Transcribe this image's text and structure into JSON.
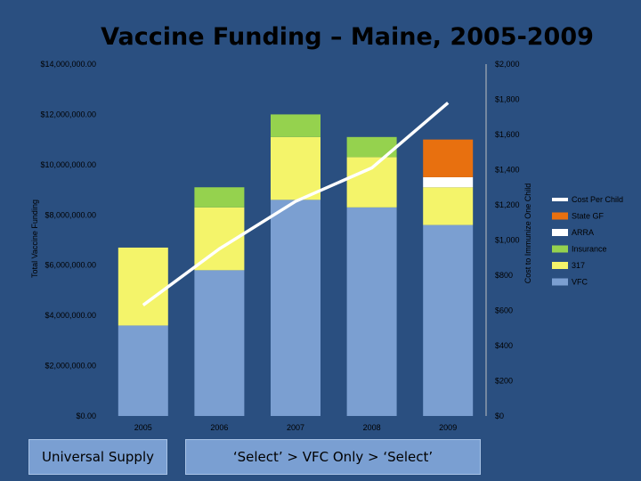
{
  "title": "Vaccine Funding – Maine, 2005-2009",
  "boxes": {
    "universal": "Universal Supply",
    "select": "‘Select’ > VFC Only > ‘Select’"
  },
  "colors": {
    "background": "#2a4f80",
    "VFC": "#7b9fd1",
    "317": "#f4f46a",
    "Insurance": "#95d24e",
    "ARRA": "#ffffff",
    "State GF": "#e8700f",
    "Cost Per Child": "#ffffff"
  },
  "chart_data": {
    "type": "bar",
    "stacked": true,
    "categories": [
      "2005",
      "2006",
      "2007",
      "2008",
      "2009"
    ],
    "series": [
      {
        "name": "VFC",
        "values": [
          3600000,
          5800000,
          8600000,
          8300000,
          7600000
        ]
      },
      {
        "name": "317",
        "values": [
          3100000,
          2500000,
          2500000,
          2000000,
          1500000
        ]
      },
      {
        "name": "Insurance",
        "values": [
          0,
          800000,
          900000,
          800000,
          0
        ]
      },
      {
        "name": "ARRA",
        "values": [
          0,
          0,
          0,
          0,
          400000
        ]
      },
      {
        "name": "State GF",
        "values": [
          0,
          0,
          0,
          0,
          1500000
        ]
      }
    ],
    "line_series": {
      "name": "Cost Per Child",
      "axis": "right",
      "values": [
        630,
        950,
        1220,
        1410,
        1780
      ]
    },
    "ylabel": "Total Vaccine Funding",
    "y2label": "Cost to Immunize One Child",
    "ylim": [
      0,
      14000000
    ],
    "y2lim": [
      0,
      2000
    ],
    "yticks": [
      "$0.00",
      "$2,000,000.00",
      "$4,000,000.00",
      "$6,000,000.00",
      "$8,000,000.00",
      "$10,000,000.00",
      "$12,000,000.00",
      "$14,000,000.00"
    ],
    "y2ticks": [
      "$0",
      "$200",
      "$400",
      "$600",
      "$800",
      "$1,000",
      "$1,200",
      "$1,400",
      "$1,600",
      "$1,800",
      "$2,000"
    ],
    "legend": [
      "Cost Per Child",
      "State GF",
      "ARRA",
      "Insurance",
      "317",
      "VFC"
    ],
    "legend_position": "right",
    "grid": false
  }
}
